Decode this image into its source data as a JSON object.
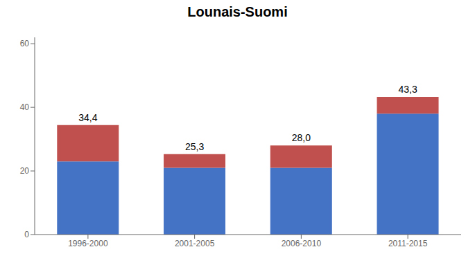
{
  "chart_data": {
    "type": "bar",
    "title": "Lounais-Suomi",
    "categories": [
      "1996-2000",
      "2001-2005",
      "2006-2010",
      "2011-2015"
    ],
    "series": [
      {
        "color": "#4472C4",
        "values": [
          23.0,
          21.0,
          21.0,
          38.0
        ]
      },
      {
        "color": "#C0504D",
        "values": [
          11.4,
          4.3,
          7.0,
          5.3
        ]
      }
    ],
    "stacked": true,
    "totals": [
      34.4,
      25.3,
      28.0,
      43.3
    ],
    "total_labels": [
      "34,4",
      "25,3",
      "28,0",
      "43,3"
    ],
    "ylim": [
      0,
      62
    ],
    "yticks": [
      0,
      20,
      40,
      60
    ],
    "grid": false
  }
}
